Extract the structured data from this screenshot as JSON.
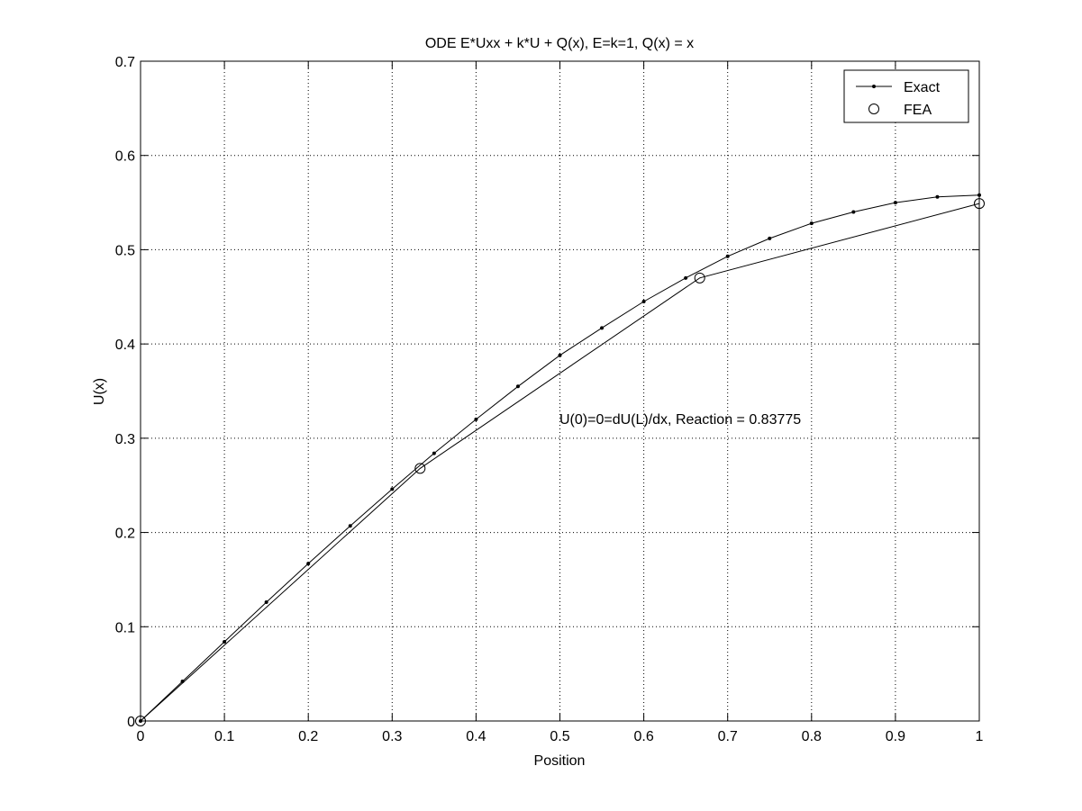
{
  "chart_data": {
    "type": "line",
    "title": "ODE E*Uxx + k*U + Q(x), E=k=1, Q(x) = x",
    "xlabel": "Position",
    "ylabel": "U(x)",
    "xlim": [
      0,
      1
    ],
    "ylim": [
      0,
      0.7
    ],
    "xticks": [
      0,
      0.1,
      0.2,
      0.3,
      0.4,
      0.5,
      0.6,
      0.7,
      0.8,
      0.9,
      1
    ],
    "xtick_labels": [
      "0",
      "0.1",
      "0.2",
      "0.3",
      "0.4",
      "0.5",
      "0.6",
      "0.7",
      "0.8",
      "0.9",
      "1"
    ],
    "yticks": [
      0,
      0.1,
      0.2,
      0.3,
      0.4,
      0.5,
      0.6,
      0.7
    ],
    "ytick_labels": [
      "0",
      "0.1",
      "0.2",
      "0.3",
      "0.4",
      "0.5",
      "0.6",
      "0.7"
    ],
    "grid": true,
    "legend_position": "top-right",
    "annotation": "U(0)=0=dU(L)/dx, Reaction = 0.83775",
    "series": [
      {
        "name": "Exact",
        "marker": "dot",
        "x": [
          0,
          0.05,
          0.1,
          0.15,
          0.2,
          0.25,
          0.3,
          0.35,
          0.4,
          0.45,
          0.5,
          0.55,
          0.6,
          0.65,
          0.7,
          0.75,
          0.8,
          0.85,
          0.9,
          0.95,
          1
        ],
        "y": [
          0,
          0.042,
          0.084,
          0.126,
          0.167,
          0.207,
          0.246,
          0.284,
          0.32,
          0.355,
          0.388,
          0.417,
          0.445,
          0.47,
          0.493,
          0.512,
          0.528,
          0.54,
          0.55,
          0.556,
          0.558
        ]
      },
      {
        "name": "FEA",
        "marker": "circle",
        "x": [
          0,
          0.3333,
          0.6667,
          1
        ],
        "y": [
          0,
          0.268,
          0.47,
          0.549
        ]
      }
    ]
  }
}
